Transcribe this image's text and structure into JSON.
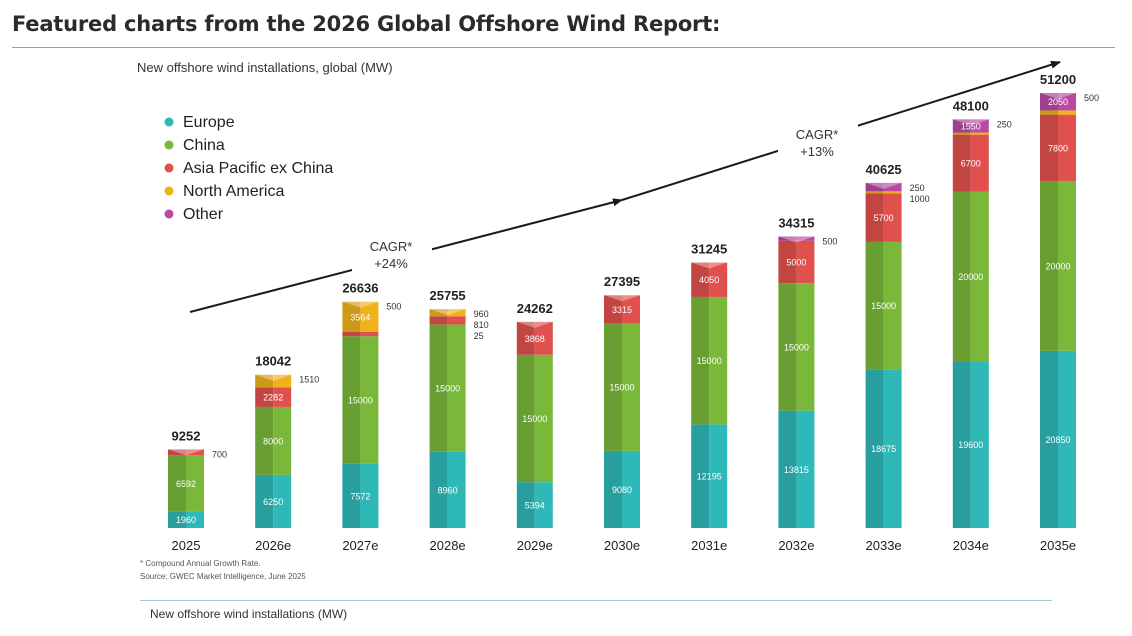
{
  "page": {
    "title": "Featured charts from the 2026 Global Offshore Wind Report:",
    "footer_caption": "New offshore wind installations (MW)"
  },
  "colors": {
    "Europe": "#2fb8b8",
    "China": "#7ab83a",
    "Asia Pacific ex China": "#e0504c",
    "North America": "#efb21b",
    "Other": "#b84aa4"
  },
  "chart_data": {
    "type": "bar",
    "stacked": true,
    "title": "New offshore wind installations, global (MW)",
    "xlabel": "",
    "ylabel": "",
    "categories": [
      "2025",
      "2026e",
      "2027e",
      "2028e",
      "2029e",
      "2030e",
      "2031e",
      "2032e",
      "2033e",
      "2034e",
      "2035e"
    ],
    "series": [
      {
        "name": "Europe",
        "values": [
          1960,
          6250,
          7572,
          8960,
          5394,
          9080,
          12195,
          13815,
          18675,
          19600,
          20850
        ]
      },
      {
        "name": "China",
        "values": [
          6592,
          8000,
          15000,
          15000,
          15000,
          15000,
          15000,
          15000,
          15000,
          20000,
          20000
        ]
      },
      {
        "name": "Asia Pacific ex China",
        "values": [
          700,
          2282,
          500,
          960,
          3868,
          3315,
          4050,
          5000,
          5700,
          6700,
          7800
        ]
      },
      {
        "name": "North America",
        "values": [
          0,
          1510,
          3564,
          810,
          0,
          0,
          0,
          0,
          250,
          250,
          500
        ]
      },
      {
        "name": "Other",
        "values": [
          0,
          0,
          0,
          25,
          0,
          0,
          0,
          500,
          1000,
          1550,
          2050
        ]
      }
    ],
    "totals": [
      9252,
      18042,
      26636,
      25755,
      24262,
      27395,
      31245,
      34315,
      40625,
      48100,
      51200
    ],
    "legend": [
      "Europe",
      "China",
      "Asia Pacific ex China",
      "North America",
      "Other"
    ],
    "legend_position": "top-left",
    "annotations": [
      {
        "label": "CAGR*",
        "value": "+24%"
      },
      {
        "label": "CAGR*",
        "value": "+13%"
      }
    ],
    "footnote": "* Compound Annual Growth Rate.",
    "source": "Source: GWEC Market Intelligence, June 2025",
    "ylim": [
      0,
      55000
    ]
  }
}
